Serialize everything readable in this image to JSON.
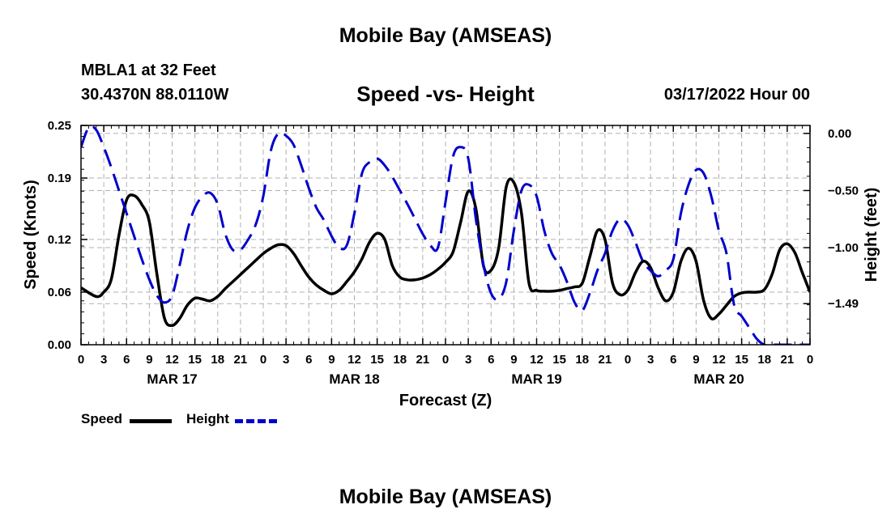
{
  "page": {
    "title": "Mobile Bay (AMSEAS)",
    "title_repeat": "Mobile Bay (AMSEAS)",
    "station": "MBLA1 at 32 Feet",
    "coordinates": "30.4370N  88.0110W",
    "run_time": "03/17/2022 Hour 00"
  },
  "chart_data": {
    "type": "line",
    "title": "Speed -vs- Height",
    "xlabel": "Forecast (Z)",
    "ylabel_left": "Speed (Knots)",
    "ylabel_right": "Height (feet)",
    "x_range": [
      0,
      96
    ],
    "ylim_left": [
      0.0,
      0.25
    ],
    "ylim_right": [
      -1.85,
      0.07
    ],
    "x_ticks": [
      0,
      3,
      6,
      9,
      12,
      15,
      18,
      21,
      24,
      27,
      30,
      33,
      36,
      39,
      42,
      45,
      48,
      51,
      54,
      57,
      60,
      63,
      66,
      69,
      72,
      75,
      78,
      81,
      84,
      87,
      90,
      93,
      96
    ],
    "x_tick_labels": [
      "0",
      "3",
      "6",
      "9",
      "12",
      "15",
      "18",
      "21",
      "0",
      "3",
      "6",
      "9",
      "12",
      "15",
      "18",
      "21",
      "0",
      "3",
      "6",
      "9",
      "12",
      "15",
      "18",
      "21",
      "0",
      "3",
      "6",
      "9",
      "12",
      "15",
      "18",
      "21",
      "0"
    ],
    "day_labels": [
      {
        "hour": 12,
        "label": "MAR 17"
      },
      {
        "hour": 36,
        "label": "MAR 18"
      },
      {
        "hour": 60,
        "label": "MAR 19"
      },
      {
        "hour": 84,
        "label": "MAR 20"
      }
    ],
    "y_ticks_left": [
      0.0,
      0.06,
      0.12,
      0.19,
      0.25
    ],
    "y_tick_labels_left": [
      "0.00",
      "0.06",
      "0.12",
      "0.19",
      "0.25"
    ],
    "y_ticks_right": [
      0.0,
      -0.5,
      -1.0,
      -1.49
    ],
    "y_tick_labels_right": [
      "0.00",
      "−0.50",
      "−1.00",
      "−1.49"
    ],
    "grid": true,
    "legend": [
      {
        "label": "Speed",
        "color": "#000000",
        "style": "solid"
      },
      {
        "label": "Height",
        "color": "#0000cc",
        "style": "dashed"
      }
    ],
    "series": [
      {
        "name": "Speed",
        "axis": "left",
        "color": "#000000",
        "x": [
          0,
          2,
          3,
          4,
          5,
          6,
          7,
          8,
          9,
          10,
          11,
          12,
          13,
          14,
          15,
          16,
          17,
          18,
          19,
          20,
          21,
          22,
          23,
          24,
          25,
          26,
          27,
          28,
          29,
          30,
          31,
          32,
          33,
          34,
          35,
          36,
          37,
          38,
          39,
          40,
          41,
          42,
          43,
          44,
          45,
          46,
          47,
          48,
          49,
          50,
          51,
          52,
          53,
          54,
          55,
          56,
          57,
          58,
          59,
          60,
          61,
          62,
          63,
          64,
          65,
          66,
          67,
          68,
          69,
          70,
          71,
          72,
          73,
          74,
          75,
          76,
          77,
          78,
          79,
          80,
          81,
          82,
          83,
          84,
          85,
          86,
          87,
          88,
          89,
          90,
          91,
          92,
          93,
          94,
          95,
          96
        ],
        "values": [
          0.065,
          0.055,
          0.06,
          0.075,
          0.125,
          0.165,
          0.17,
          0.16,
          0.14,
          0.08,
          0.03,
          0.022,
          0.03,
          0.045,
          0.053,
          0.052,
          0.05,
          0.055,
          0.064,
          0.072,
          0.08,
          0.088,
          0.096,
          0.104,
          0.11,
          0.114,
          0.113,
          0.104,
          0.09,
          0.077,
          0.068,
          0.062,
          0.058,
          0.062,
          0.072,
          0.083,
          0.098,
          0.117,
          0.127,
          0.12,
          0.09,
          0.077,
          0.074,
          0.074,
          0.076,
          0.08,
          0.086,
          0.094,
          0.106,
          0.14,
          0.175,
          0.155,
          0.09,
          0.085,
          0.11,
          0.18,
          0.185,
          0.15,
          0.07,
          0.062,
          0.061,
          0.061,
          0.062,
          0.064,
          0.066,
          0.07,
          0.1,
          0.13,
          0.12,
          0.07,
          0.057,
          0.062,
          0.082,
          0.095,
          0.088,
          0.065,
          0.05,
          0.06,
          0.095,
          0.11,
          0.095,
          0.05,
          0.03,
          0.035,
          0.045,
          0.055,
          0.059,
          0.06,
          0.06,
          0.063,
          0.08,
          0.108,
          0.115,
          0.105,
          0.082,
          0.06
        ]
      },
      {
        "name": "Height",
        "axis": "right",
        "color": "#0000cc",
        "x": [
          0,
          1,
          2,
          3,
          4,
          5,
          6,
          7,
          8,
          9,
          10,
          11,
          12,
          13,
          14,
          15,
          16,
          17,
          18,
          19,
          20,
          21,
          22,
          23,
          24,
          25,
          26,
          27,
          28,
          29,
          30,
          31,
          32,
          33,
          34,
          35,
          36,
          37,
          38,
          39,
          40,
          41,
          42,
          43,
          44,
          45,
          46,
          47,
          48,
          49,
          50,
          51,
          52,
          53,
          54,
          55,
          56,
          57,
          58,
          59,
          60,
          61,
          62,
          63,
          64,
          65,
          66,
          67,
          68,
          69,
          70,
          71,
          72,
          73,
          74,
          75,
          76,
          77,
          78,
          79,
          80,
          81,
          82,
          83,
          84,
          85,
          86,
          87,
          88,
          89,
          90,
          91,
          92,
          93,
          94,
          95,
          96
        ],
        "values": [
          -0.12,
          0.05,
          0.03,
          -0.12,
          -0.3,
          -0.5,
          -0.7,
          -0.9,
          -1.1,
          -1.28,
          -1.42,
          -1.48,
          -1.42,
          -1.15,
          -0.85,
          -0.65,
          -0.55,
          -0.52,
          -0.62,
          -0.88,
          -1.02,
          -1.02,
          -0.93,
          -0.8,
          -0.55,
          -0.15,
          0.0,
          -0.02,
          -0.1,
          -0.28,
          -0.48,
          -0.65,
          -0.76,
          -0.9,
          -1.0,
          -0.98,
          -0.7,
          -0.35,
          -0.25,
          -0.22,
          -0.28,
          -0.38,
          -0.5,
          -0.62,
          -0.75,
          -0.88,
          -0.98,
          -1.0,
          -0.6,
          -0.2,
          -0.12,
          -0.22,
          -0.75,
          -1.15,
          -1.4,
          -1.45,
          -1.3,
          -0.85,
          -0.5,
          -0.45,
          -0.55,
          -0.85,
          -1.05,
          -1.15,
          -1.3,
          -1.48,
          -1.55,
          -1.4,
          -1.2,
          -1.05,
          -0.85,
          -0.75,
          -0.8,
          -0.95,
          -1.12,
          -1.2,
          -1.25,
          -1.2,
          -1.1,
          -0.7,
          -0.45,
          -0.32,
          -0.35,
          -0.55,
          -0.85,
          -1.05,
          -1.5,
          -1.6,
          -1.7,
          -1.8,
          -1.85,
          -1.85,
          -1.85,
          -1.85,
          -1.85,
          -1.85,
          -1.85
        ]
      }
    ]
  }
}
